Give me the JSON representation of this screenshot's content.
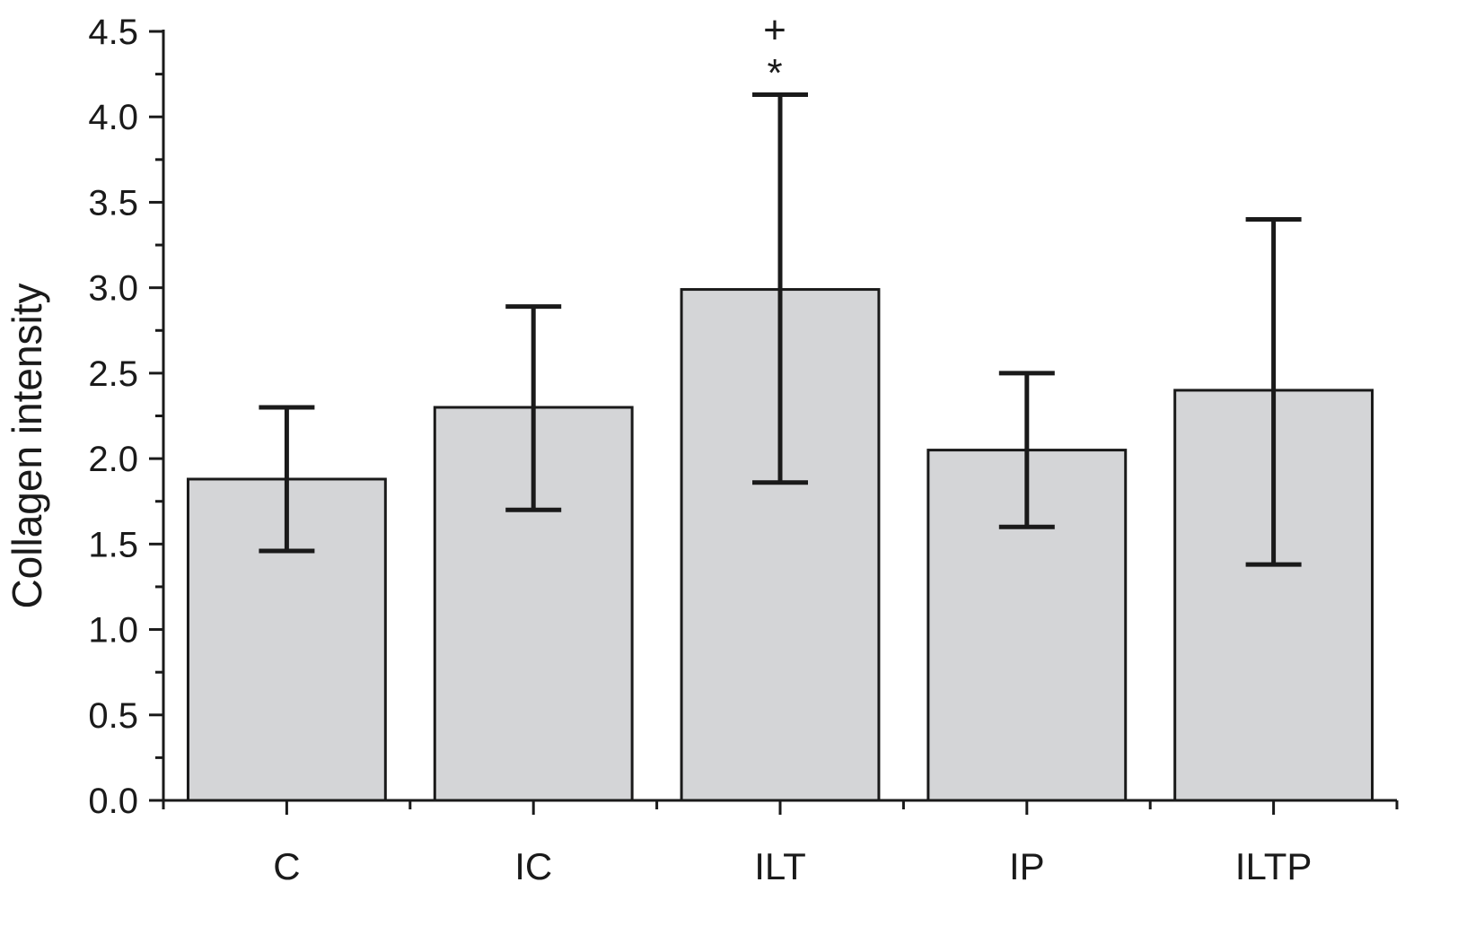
{
  "chart_data": {
    "type": "bar",
    "title": "",
    "xlabel": "",
    "ylabel": "Collagen intensity",
    "categories": [
      "C",
      "IC",
      "ILT",
      "IP",
      "ILTP"
    ],
    "values": [
      1.88,
      2.3,
      2.99,
      2.05,
      2.4
    ],
    "error_low": [
      1.46,
      1.7,
      1.86,
      1.6,
      1.38
    ],
    "error_high": [
      2.3,
      2.89,
      4.13,
      2.5,
      3.4
    ],
    "ylim": [
      0,
      4.5
    ],
    "yticks": [
      "0.0",
      "0.5",
      "1.0",
      "1.5",
      "2.0",
      "2.5",
      "3.0",
      "3.5",
      "4.0",
      "4.5"
    ],
    "annotations": [
      {
        "category": "ILT",
        "symbols": [
          "+",
          "*"
        ]
      }
    ],
    "grid": false,
    "legend": "none",
    "colors": {
      "bar_fill": "#d4d5d7",
      "stroke": "#1a1a1a"
    }
  }
}
